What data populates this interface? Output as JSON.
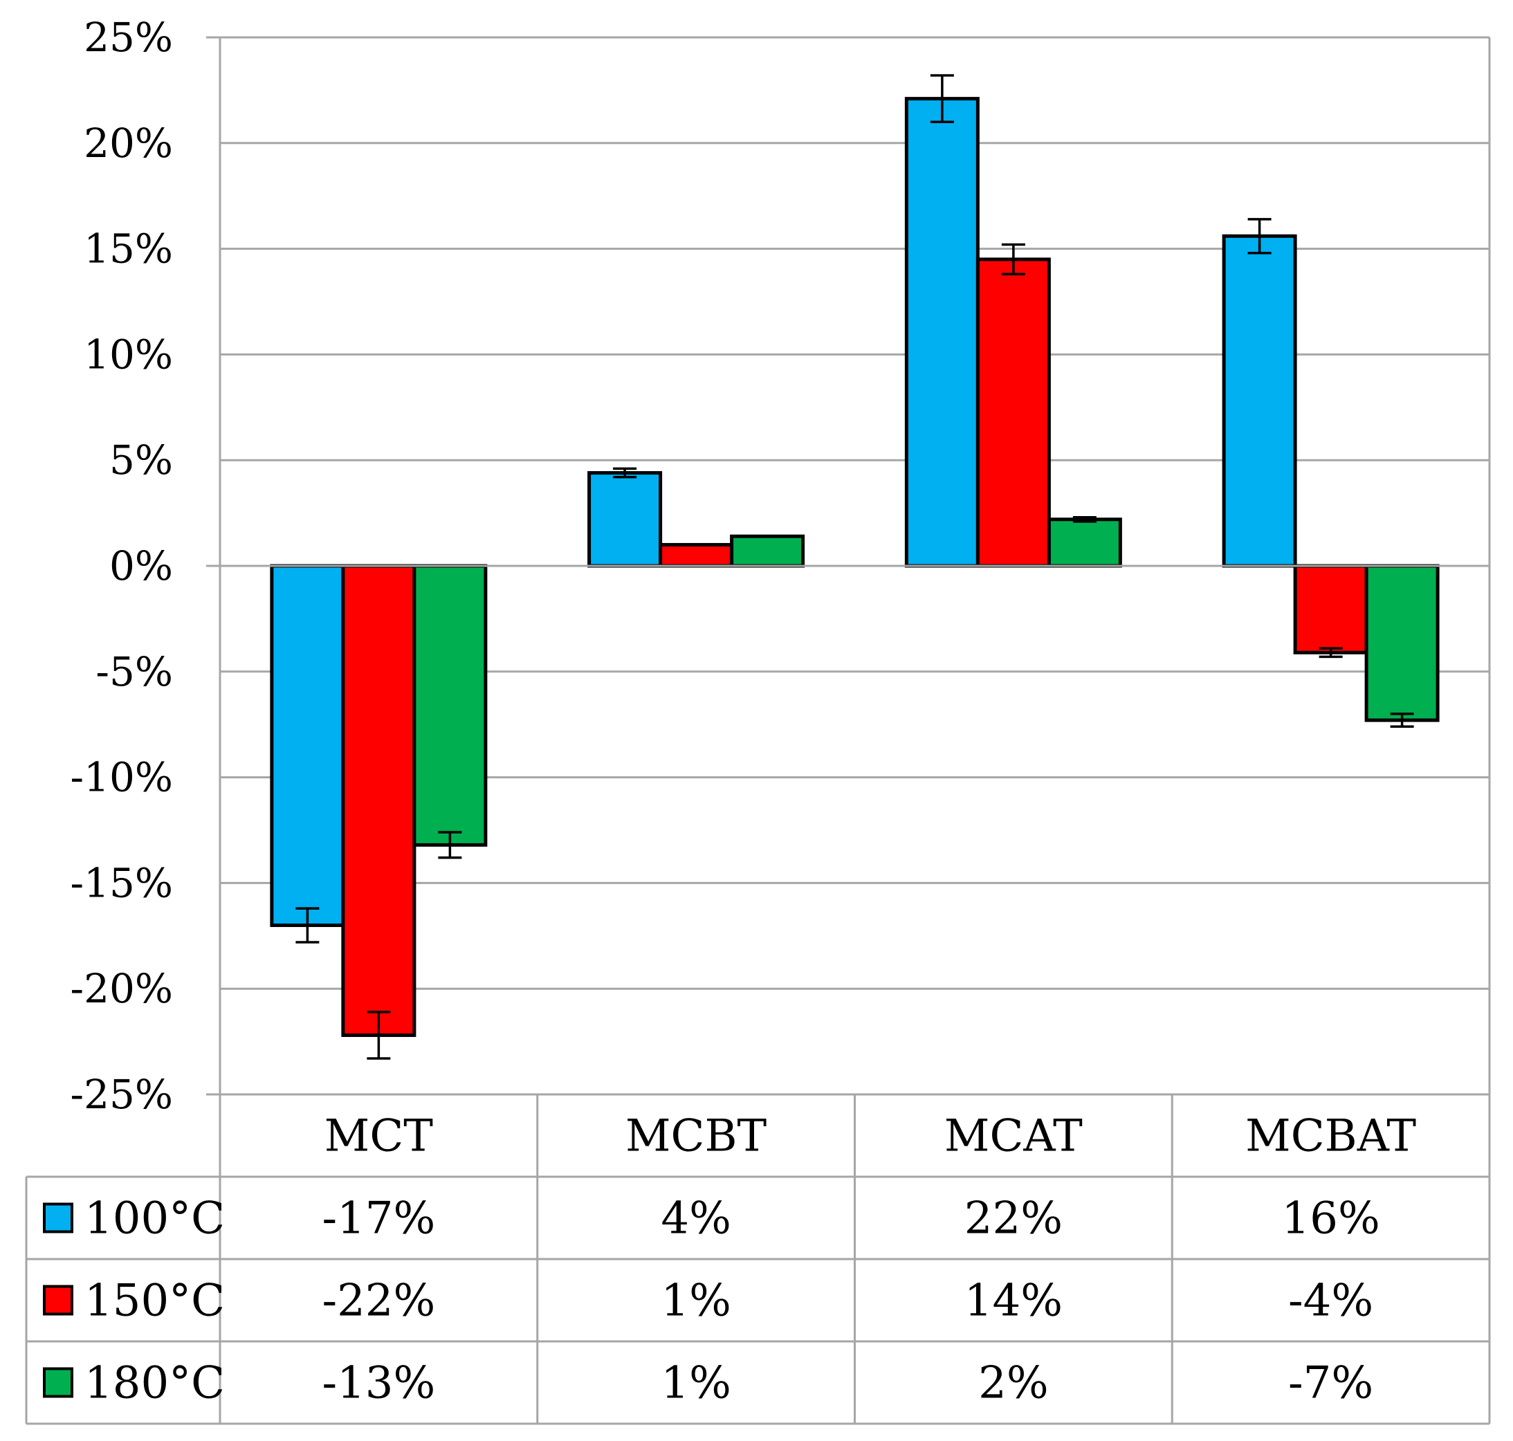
{
  "chart_data": {
    "type": "bar",
    "title": "",
    "xlabel": "",
    "ylabel": "",
    "ylim": [
      -0.25,
      0.25
    ],
    "yticks": [
      0.25,
      0.2,
      0.15,
      0.1,
      0.05,
      0.0,
      -0.05,
      -0.1,
      -0.15,
      -0.2,
      -0.25
    ],
    "ytick_labels": [
      "25%",
      "20%",
      "15%",
      "10%",
      "5%",
      "0%",
      "-5%",
      "-10%",
      "-15%",
      "-20%",
      "-25%"
    ],
    "grid": true,
    "legend_placement": "data-table-left",
    "categories": [
      "MCT",
      "MCBT",
      "MCAT",
      "MCBAT"
    ],
    "series": [
      {
        "name": "100°C",
        "color": "#00b0f0",
        "values": [
          -0.17,
          0.044,
          0.221,
          0.156
        ],
        "errors": [
          0.008,
          0.002,
          0.011,
          0.008
        ],
        "table_labels": [
          "-17%",
          "4%",
          "22%",
          "16%"
        ]
      },
      {
        "name": "150°C",
        "color": "#ff0000",
        "values": [
          -0.222,
          0.01,
          0.145,
          -0.041
        ],
        "errors": [
          0.011,
          0.0,
          0.007,
          0.002
        ],
        "table_labels": [
          "-22%",
          "1%",
          "14%",
          "-4%"
        ]
      },
      {
        "name": "180°C",
        "color": "#00b050",
        "values": [
          -0.132,
          0.014,
          0.022,
          -0.073
        ],
        "errors": [
          0.006,
          0.0,
          0.001,
          0.003
        ],
        "table_labels": [
          "-13%",
          "1%",
          "2%",
          "-7%"
        ]
      }
    ]
  }
}
